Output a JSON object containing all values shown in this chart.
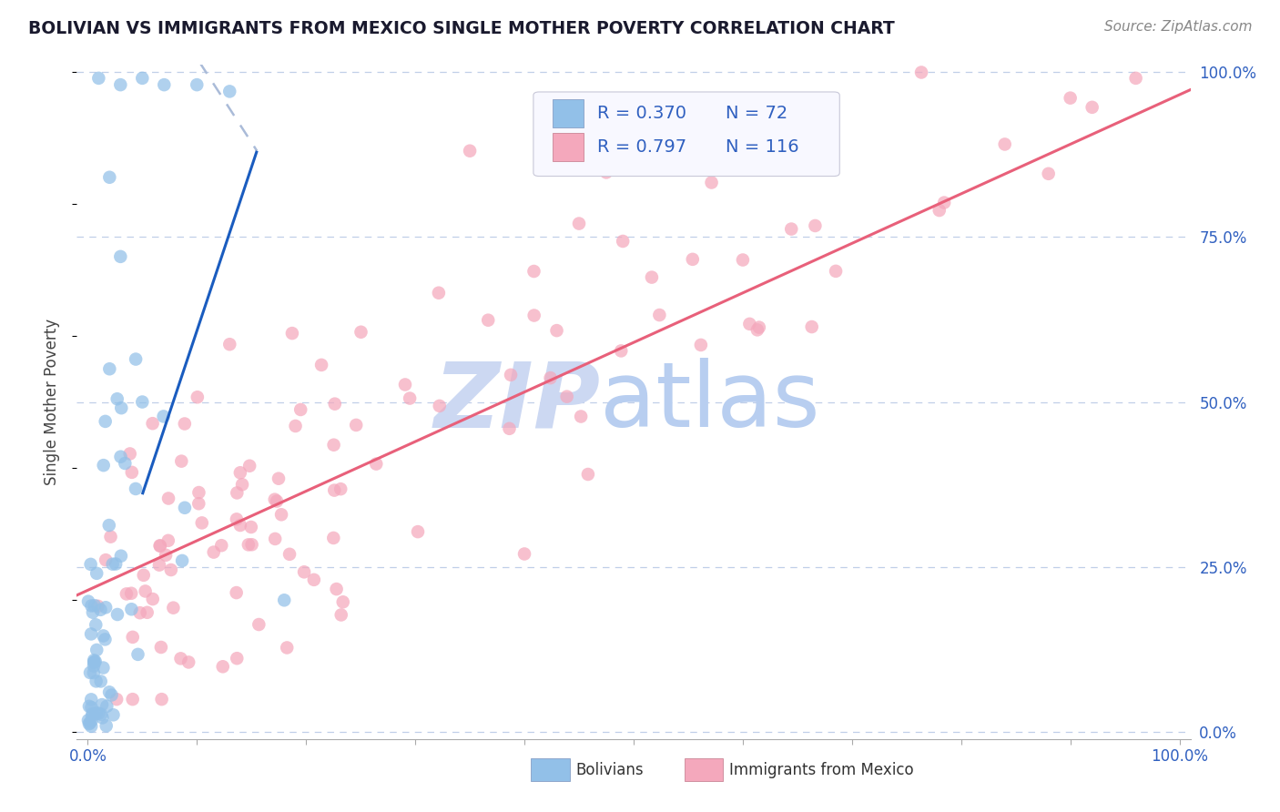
{
  "title": "BOLIVIAN VS IMMIGRANTS FROM MEXICO SINGLE MOTHER POVERTY CORRELATION CHART",
  "source": "Source: ZipAtlas.com",
  "ylabel": "Single Mother Poverty",
  "legend_labels": [
    "Bolivians",
    "Immigrants from Mexico"
  ],
  "r_bolivian": 0.37,
  "n_bolivian": 72,
  "r_mexico": 0.797,
  "n_mexico": 116,
  "color_bolivian": "#92c0e8",
  "color_mexico": "#f4a8bc",
  "color_bolivian_line": "#1a5cbf",
  "color_mexico_line": "#e8607a",
  "background_color": "#ffffff",
  "grid_color": "#c0cfe8",
  "title_color": "#1a1a2e",
  "axis_label_color": "#3060c0",
  "watermark_zip_color": "#c8d4f0",
  "watermark_atlas_color": "#b8d4f0",
  "legend_text_color": "#3060c0",
  "legend_rn_color": "#1a1a2e",
  "source_color": "#888888",
  "ylabel_color": "#444444",
  "xtick_color": "#3060c0",
  "ytick_right_color": "#3060c0",
  "bottom_legend_text_color": "#333333"
}
